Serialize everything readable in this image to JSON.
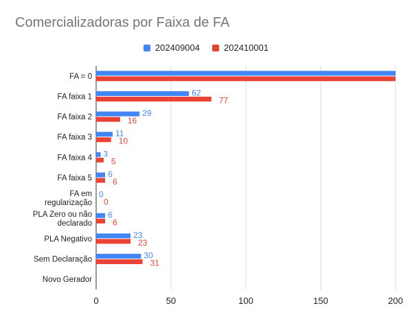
{
  "chart_data": {
    "type": "bar",
    "orientation": "horizontal",
    "title": "Comercializadoras por Faixa de FA",
    "categories": [
      [
        "FA = 0"
      ],
      [
        "FA faixa 1"
      ],
      [
        "FA faixa 2"
      ],
      [
        "FA faixa 3"
      ],
      [
        "FA faixa 4"
      ],
      [
        "FA faixa 5"
      ],
      [
        "FA em",
        "regularização"
      ],
      [
        "PLA Zero ou não",
        "declarado"
      ],
      [
        "PLA Negativo"
      ],
      [
        "Sem Declaração"
      ],
      [
        "Novo Gerador"
      ]
    ],
    "series": [
      {
        "name": "202409004",
        "color": "#4285F4",
        "values": [
          200,
          62,
          29,
          11,
          3,
          6,
          0,
          6,
          23,
          30,
          null
        ],
        "labels": [
          "",
          "62",
          "29",
          "11",
          "3",
          "6",
          "0",
          "6",
          "23",
          "30",
          ""
        ]
      },
      {
        "name": "202410001",
        "color": "#EA4335",
        "values": [
          200,
          77,
          16,
          10,
          5,
          6,
          0,
          6,
          23,
          31,
          null
        ],
        "labels": [
          "",
          "77",
          "16",
          "10",
          "5",
          "6",
          "0",
          "6",
          "23",
          "31",
          ""
        ]
      }
    ],
    "xlim": [
      0,
      200
    ],
    "xticks": [
      "0",
      "50",
      "100",
      "150",
      "200"
    ],
    "grid": true,
    "legend_position": "top"
  }
}
